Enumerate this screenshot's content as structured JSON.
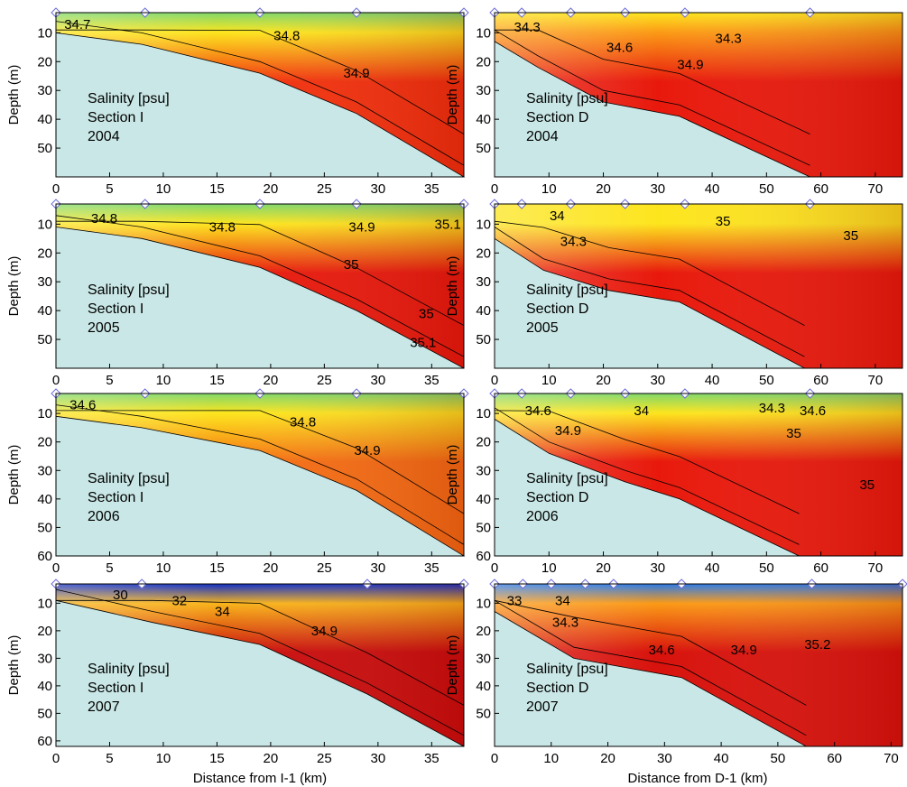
{
  "figure": {
    "xlabel_left": "Distance from I-1 (km)",
    "xlabel_right": "Distance from D-1 (km)"
  },
  "chart_data": [
    {
      "type": "heatmap",
      "section": "I",
      "year": "2004",
      "text_lines": [
        "Salinity [psu]",
        "Section  I",
        "2004"
      ],
      "ylabel": "Depth (m)",
      "xlim": [
        0,
        38
      ],
      "ylim": [
        3,
        60
      ],
      "xticks": [
        0,
        5,
        10,
        15,
        20,
        25,
        30,
        35
      ],
      "yticks": [
        10,
        20,
        30,
        40,
        50
      ],
      "stations_km": [
        0,
        8.3,
        19,
        28,
        38
      ],
      "bottom_profile": [
        [
          0,
          10
        ],
        [
          8,
          14
        ],
        [
          19,
          24
        ],
        [
          28,
          38
        ],
        [
          38,
          60
        ]
      ],
      "contour_labels": [
        {
          "text": "34.7",
          "x": 2,
          "y": 7
        },
        {
          "text": "34.8",
          "x": 21.5,
          "y": 11
        },
        {
          "text": "34.9",
          "x": 28,
          "y": 24
        }
      ],
      "surface_color": "#fde51e",
      "bulk_color": "#f2300c",
      "fresh_color": "#7fd86a"
    },
    {
      "type": "heatmap",
      "section": "D",
      "year": "2004",
      "text_lines": [
        "Salinity [psu]",
        "Section  D",
        "2004"
      ],
      "ylabel": "Depth (m)",
      "xlim": [
        0,
        75
      ],
      "ylim": [
        3,
        60
      ],
      "xticks": [
        0,
        10,
        20,
        30,
        40,
        50,
        60,
        70
      ],
      "yticks": [
        10,
        20,
        30,
        40,
        50
      ],
      "stations_km": [
        0,
        5,
        14,
        24,
        35,
        58
      ],
      "bottom_profile": [
        [
          0,
          13
        ],
        [
          8,
          22
        ],
        [
          20,
          34
        ],
        [
          34,
          39
        ],
        [
          58,
          60
        ]
      ],
      "contour_labels": [
        {
          "text": "34.3",
          "x": 6,
          "y": 8
        },
        {
          "text": "34.6",
          "x": 23,
          "y": 15
        },
        {
          "text": "34.3",
          "x": 43,
          "y": 12
        },
        {
          "text": "34.9",
          "x": 36,
          "y": 21
        }
      ],
      "surface_color": "#fb9a16",
      "bulk_color": "#e8190c",
      "fresh_color": "#fde51e"
    },
    {
      "type": "heatmap",
      "section": "I",
      "year": "2005",
      "text_lines": [
        "Salinity [psu]",
        "Section  I",
        "2005"
      ],
      "ylabel": "Depth (m)",
      "xlim": [
        0,
        38
      ],
      "ylim": [
        3,
        60
      ],
      "xticks": [
        0,
        5,
        10,
        15,
        20,
        25,
        30,
        35
      ],
      "yticks": [
        10,
        20,
        30,
        40,
        50
      ],
      "stations_km": [
        0,
        8.3,
        19,
        28,
        38
      ],
      "bottom_profile": [
        [
          0,
          11
        ],
        [
          8,
          15
        ],
        [
          19,
          25
        ],
        [
          28,
          40
        ],
        [
          38,
          60
        ]
      ],
      "contour_labels": [
        {
          "text": "34.8",
          "x": 4.5,
          "y": 8
        },
        {
          "text": "34.8",
          "x": 15.5,
          "y": 11
        },
        {
          "text": "34.9",
          "x": 28.5,
          "y": 11
        },
        {
          "text": "35.1",
          "x": 36.5,
          "y": 10
        },
        {
          "text": "35",
          "x": 27.5,
          "y": 24
        },
        {
          "text": "35",
          "x": 34.5,
          "y": 41
        },
        {
          "text": "35.1",
          "x": 34.2,
          "y": 51
        }
      ],
      "surface_color": "#fde51e",
      "bulk_color": "#e8190c",
      "fresh_color": "#7fd86a"
    },
    {
      "type": "heatmap",
      "section": "D",
      "year": "2005",
      "text_lines": [
        "Salinity [psu]",
        "Section  D",
        "2005"
      ],
      "ylabel": "Depth (m)",
      "xlim": [
        0,
        75
      ],
      "ylim": [
        3,
        60
      ],
      "xticks": [
        0,
        10,
        20,
        30,
        40,
        50,
        60,
        70
      ],
      "yticks": [
        10,
        20,
        30,
        40,
        50
      ],
      "stations_km": [
        0,
        5,
        14,
        24,
        35,
        58
      ],
      "bottom_profile": [
        [
          0,
          15
        ],
        [
          9,
          26
        ],
        [
          21,
          33
        ],
        [
          34,
          37
        ],
        [
          57,
          60
        ]
      ],
      "contour_labels": [
        {
          "text": "34",
          "x": 11.5,
          "y": 7
        },
        {
          "text": "34.3",
          "x": 14.5,
          "y": 16
        },
        {
          "text": "35",
          "x": 42,
          "y": 9
        },
        {
          "text": "35",
          "x": 65.5,
          "y": 14
        }
      ],
      "surface_color": "#fde51e",
      "bulk_color": "#e8190c",
      "fresh_color": "#fde51e"
    },
    {
      "type": "heatmap",
      "section": "I",
      "year": "2006",
      "text_lines": [
        "Salinity [psu]",
        "Section  I",
        "2006"
      ],
      "ylabel": "Depth (m)",
      "xlim": [
        0,
        38
      ],
      "ylim": [
        3,
        60
      ],
      "xticks": [
        0,
        5,
        10,
        15,
        20,
        25,
        30,
        35
      ],
      "yticks": [
        10,
        20,
        30,
        40,
        50,
        60
      ],
      "stations_km": [
        0,
        8.3,
        19,
        28,
        38
      ],
      "bottom_profile": [
        [
          0,
          11
        ],
        [
          8,
          15
        ],
        [
          19,
          23
        ],
        [
          28,
          37
        ],
        [
          38,
          60
        ]
      ],
      "contour_labels": [
        {
          "text": "34.6",
          "x": 2.5,
          "y": 7
        },
        {
          "text": "34.8",
          "x": 23,
          "y": 13
        },
        {
          "text": "34.9",
          "x": 29,
          "y": 23
        }
      ],
      "surface_color": "#fde51e",
      "bulk_color": "#f56d12",
      "fresh_color": "#7fd86a"
    },
    {
      "type": "heatmap",
      "section": "D",
      "year": "2006",
      "text_lines": [
        "Salinity [psu]",
        "Section  D",
        "2006"
      ],
      "ylabel": "Depth (m)",
      "xlim": [
        0,
        75
      ],
      "ylim": [
        3,
        60
      ],
      "xticks": [
        0,
        10,
        20,
        30,
        40,
        50,
        60,
        70
      ],
      "yticks": [
        10,
        20,
        30,
        40,
        50,
        60
      ],
      "stations_km": [
        0,
        5,
        14,
        24,
        35,
        58
      ],
      "bottom_profile": [
        [
          0,
          12
        ],
        [
          10,
          24
        ],
        [
          24,
          34
        ],
        [
          34,
          40
        ],
        [
          56,
          60
        ]
      ],
      "contour_labels": [
        {
          "text": "34.6",
          "x": 8,
          "y": 9
        },
        {
          "text": "34",
          "x": 27,
          "y": 9
        },
        {
          "text": "34.3",
          "x": 51,
          "y": 8
        },
        {
          "text": "34.6",
          "x": 58.5,
          "y": 9
        },
        {
          "text": "35",
          "x": 55,
          "y": 17
        },
        {
          "text": "34.9",
          "x": 13.5,
          "y": 16
        },
        {
          "text": "35",
          "x": 68.5,
          "y": 35
        }
      ],
      "surface_color": "#fde51e",
      "bulk_color": "#e8190c",
      "fresh_color": "#7fd86a"
    },
    {
      "type": "heatmap",
      "section": "I",
      "year": "2007",
      "text_lines": [
        "Salinity [psu]",
        "Section  I",
        "2007"
      ],
      "ylabel": "Depth (m)",
      "xlim": [
        0,
        38
      ],
      "ylim": [
        3,
        62
      ],
      "xticks": [
        0,
        5,
        10,
        15,
        20,
        25,
        30,
        35
      ],
      "yticks": [
        10,
        20,
        30,
        40,
        50,
        60
      ],
      "stations_km": [
        0,
        8,
        29,
        38
      ],
      "bottom_profile": [
        [
          0,
          9
        ],
        [
          9,
          17
        ],
        [
          19,
          25
        ],
        [
          29,
          43
        ],
        [
          38,
          62
        ]
      ],
      "contour_labels": [
        {
          "text": "30",
          "x": 6,
          "y": 7
        },
        {
          "text": "32",
          "x": 11.5,
          "y": 9
        },
        {
          "text": "34",
          "x": 15.5,
          "y": 13
        },
        {
          "text": "34.9",
          "x": 25,
          "y": 20
        }
      ],
      "surface_color": "#f9b41a",
      "bulk_color": "#c90c0c",
      "fresh_color": "#1030c8"
    },
    {
      "type": "heatmap",
      "section": "D",
      "year": "2007",
      "text_lines": [
        "Salinity [psu]",
        "Section  D",
        "2007"
      ],
      "ylabel": "Depth (m)",
      "xlim": [
        0,
        72
      ],
      "ylim": [
        3,
        62
      ],
      "xticks": [
        0,
        10,
        20,
        30,
        40,
        50,
        60,
        70
      ],
      "yticks": [
        10,
        20,
        30,
        40,
        50
      ],
      "stations_km": [
        0,
        5,
        10,
        16,
        21,
        33,
        56,
        72
      ],
      "bottom_profile": [
        [
          0,
          13
        ],
        [
          14,
          30
        ],
        [
          33,
          37
        ],
        [
          55,
          62
        ]
      ],
      "contour_labels": [
        {
          "text": "33",
          "x": 3.5,
          "y": 9
        },
        {
          "text": "34",
          "x": 12,
          "y": 9
        },
        {
          "text": "34.3",
          "x": 12.5,
          "y": 17
        },
        {
          "text": "34.6",
          "x": 29.5,
          "y": 27
        },
        {
          "text": "34.9",
          "x": 44,
          "y": 27
        },
        {
          "text": "35.2",
          "x": 57,
          "y": 25
        }
      ],
      "surface_color": "#fb9a16",
      "bulk_color": "#d8120c",
      "fresh_color": "#2a7ae8"
    }
  ]
}
